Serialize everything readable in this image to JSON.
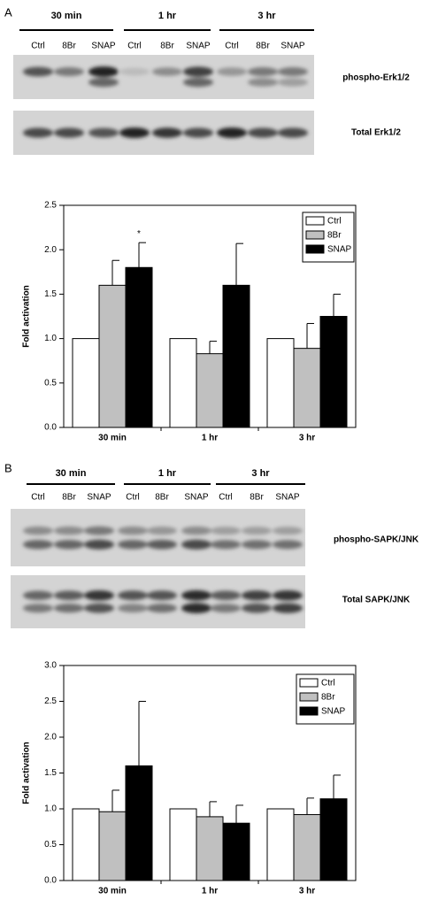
{
  "panels": [
    {
      "label": "A",
      "groups": [
        "30 min",
        "1 hr",
        "3 hr"
      ],
      "lanes": [
        "Ctrl",
        "8Br",
        "SNAP",
        "Ctrl",
        "8Br",
        "SNAP",
        "Ctrl",
        "8Br",
        "SNAP"
      ],
      "blots": [
        "phospho-Erk1/2",
        "Total Erk1/2"
      ]
    },
    {
      "label": "B",
      "groups": [
        "30 min",
        "1 hr",
        "3 hr"
      ],
      "lanes": [
        "Ctrl",
        "8Br",
        "SNAP",
        "Ctrl",
        "8Br",
        "SNAP",
        "Ctrl",
        "8Br",
        "SNAP"
      ],
      "blots": [
        "phospho-SAPK/JNK",
        "Total SAPK/JNK"
      ]
    }
  ],
  "chart_data": [
    {
      "type": "bar",
      "y_label": "Fold activation",
      "categories": [
        "30 min",
        "1 hr",
        "3 hr"
      ],
      "series": [
        {
          "name": "Ctrl",
          "color": "#ffffff",
          "values": [
            1,
            1,
            1
          ]
        },
        {
          "name": "8Br",
          "color": "#c0c0c0",
          "values": [
            1.6,
            0.83,
            0.89
          ],
          "errors": [
            0.28,
            0.14,
            0.28
          ]
        },
        {
          "name": "SNAP",
          "color": "#000000",
          "values": [
            1.8,
            1.6,
            1.25
          ],
          "errors": [
            0.28,
            0.47,
            0.25
          ]
        }
      ],
      "annotation": "*",
      "ylim": [
        0,
        2.5
      ],
      "yticks": [
        {
          "value": 0,
          "label": "0.0"
        },
        0.5,
        {
          "value": 1,
          "label": "1.0"
        },
        1.5,
        {
          "value": 2,
          "label": "2.0"
        },
        2.5
      ],
      "legend": "upper right"
    },
    {
      "type": "bar",
      "y_label": "Fold activation",
      "categories": [
        "30 min",
        "1 hr",
        "3 hr"
      ],
      "series": [
        {
          "name": "Ctrl",
          "color": "#ffffff",
          "values": [
            1,
            1,
            1
          ]
        },
        {
          "name": "8Br",
          "color": "#c0c0c0",
          "values": [
            0.96,
            0.89,
            0.92
          ],
          "errors": [
            0.3,
            0.21,
            0.23
          ]
        },
        {
          "name": "SNAP",
          "color": "#000000",
          "values": [
            1.6,
            0.8,
            1.14
          ],
          "errors": [
            0.9,
            0.25,
            0.33
          ]
        }
      ],
      "ylim": [
        0,
        3
      ],
      "yticks": [
        {
          "value": 0,
          "label": "0.0"
        },
        0.5,
        {
          "value": 1,
          "label": "1.0"
        },
        1.5,
        {
          "value": 2,
          "label": "2.0"
        },
        2.5,
        {
          "value": 3,
          "label": "3.0"
        }
      ],
      "legend": "upper right"
    }
  ]
}
